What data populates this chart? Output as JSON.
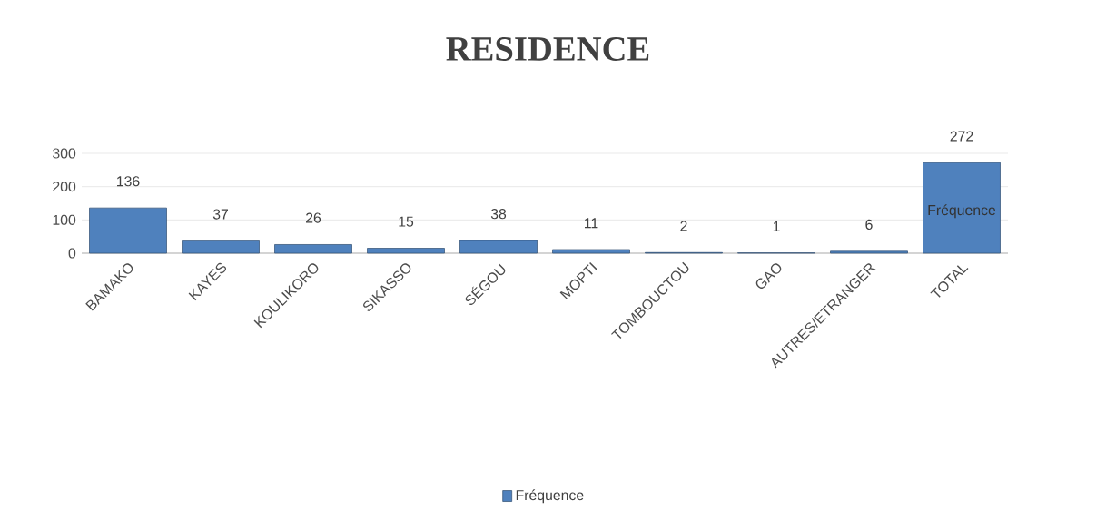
{
  "chart_data": {
    "type": "bar",
    "title": "RESIDENCE",
    "categories": [
      "BAMAKO",
      "KAYES",
      "KOULIKORO",
      "SIKASSO",
      "SÉGOU",
      "MOPTI",
      "TOMBOUCTOU",
      "GAO",
      "AUTRES/ETRANGER",
      "TOTAL"
    ],
    "series": [
      {
        "name": "Fréquence",
        "color": "#4f81bd",
        "values": [
          136,
          37,
          26,
          15,
          38,
          11,
          2,
          1,
          6,
          272
        ]
      }
    ],
    "ylim": [
      0,
      300
    ],
    "yticks": [
      0,
      100,
      200,
      300
    ],
    "grid": "y",
    "data_labels": true,
    "legend": "bottom",
    "annotations": [
      "Fréquence"
    ]
  }
}
